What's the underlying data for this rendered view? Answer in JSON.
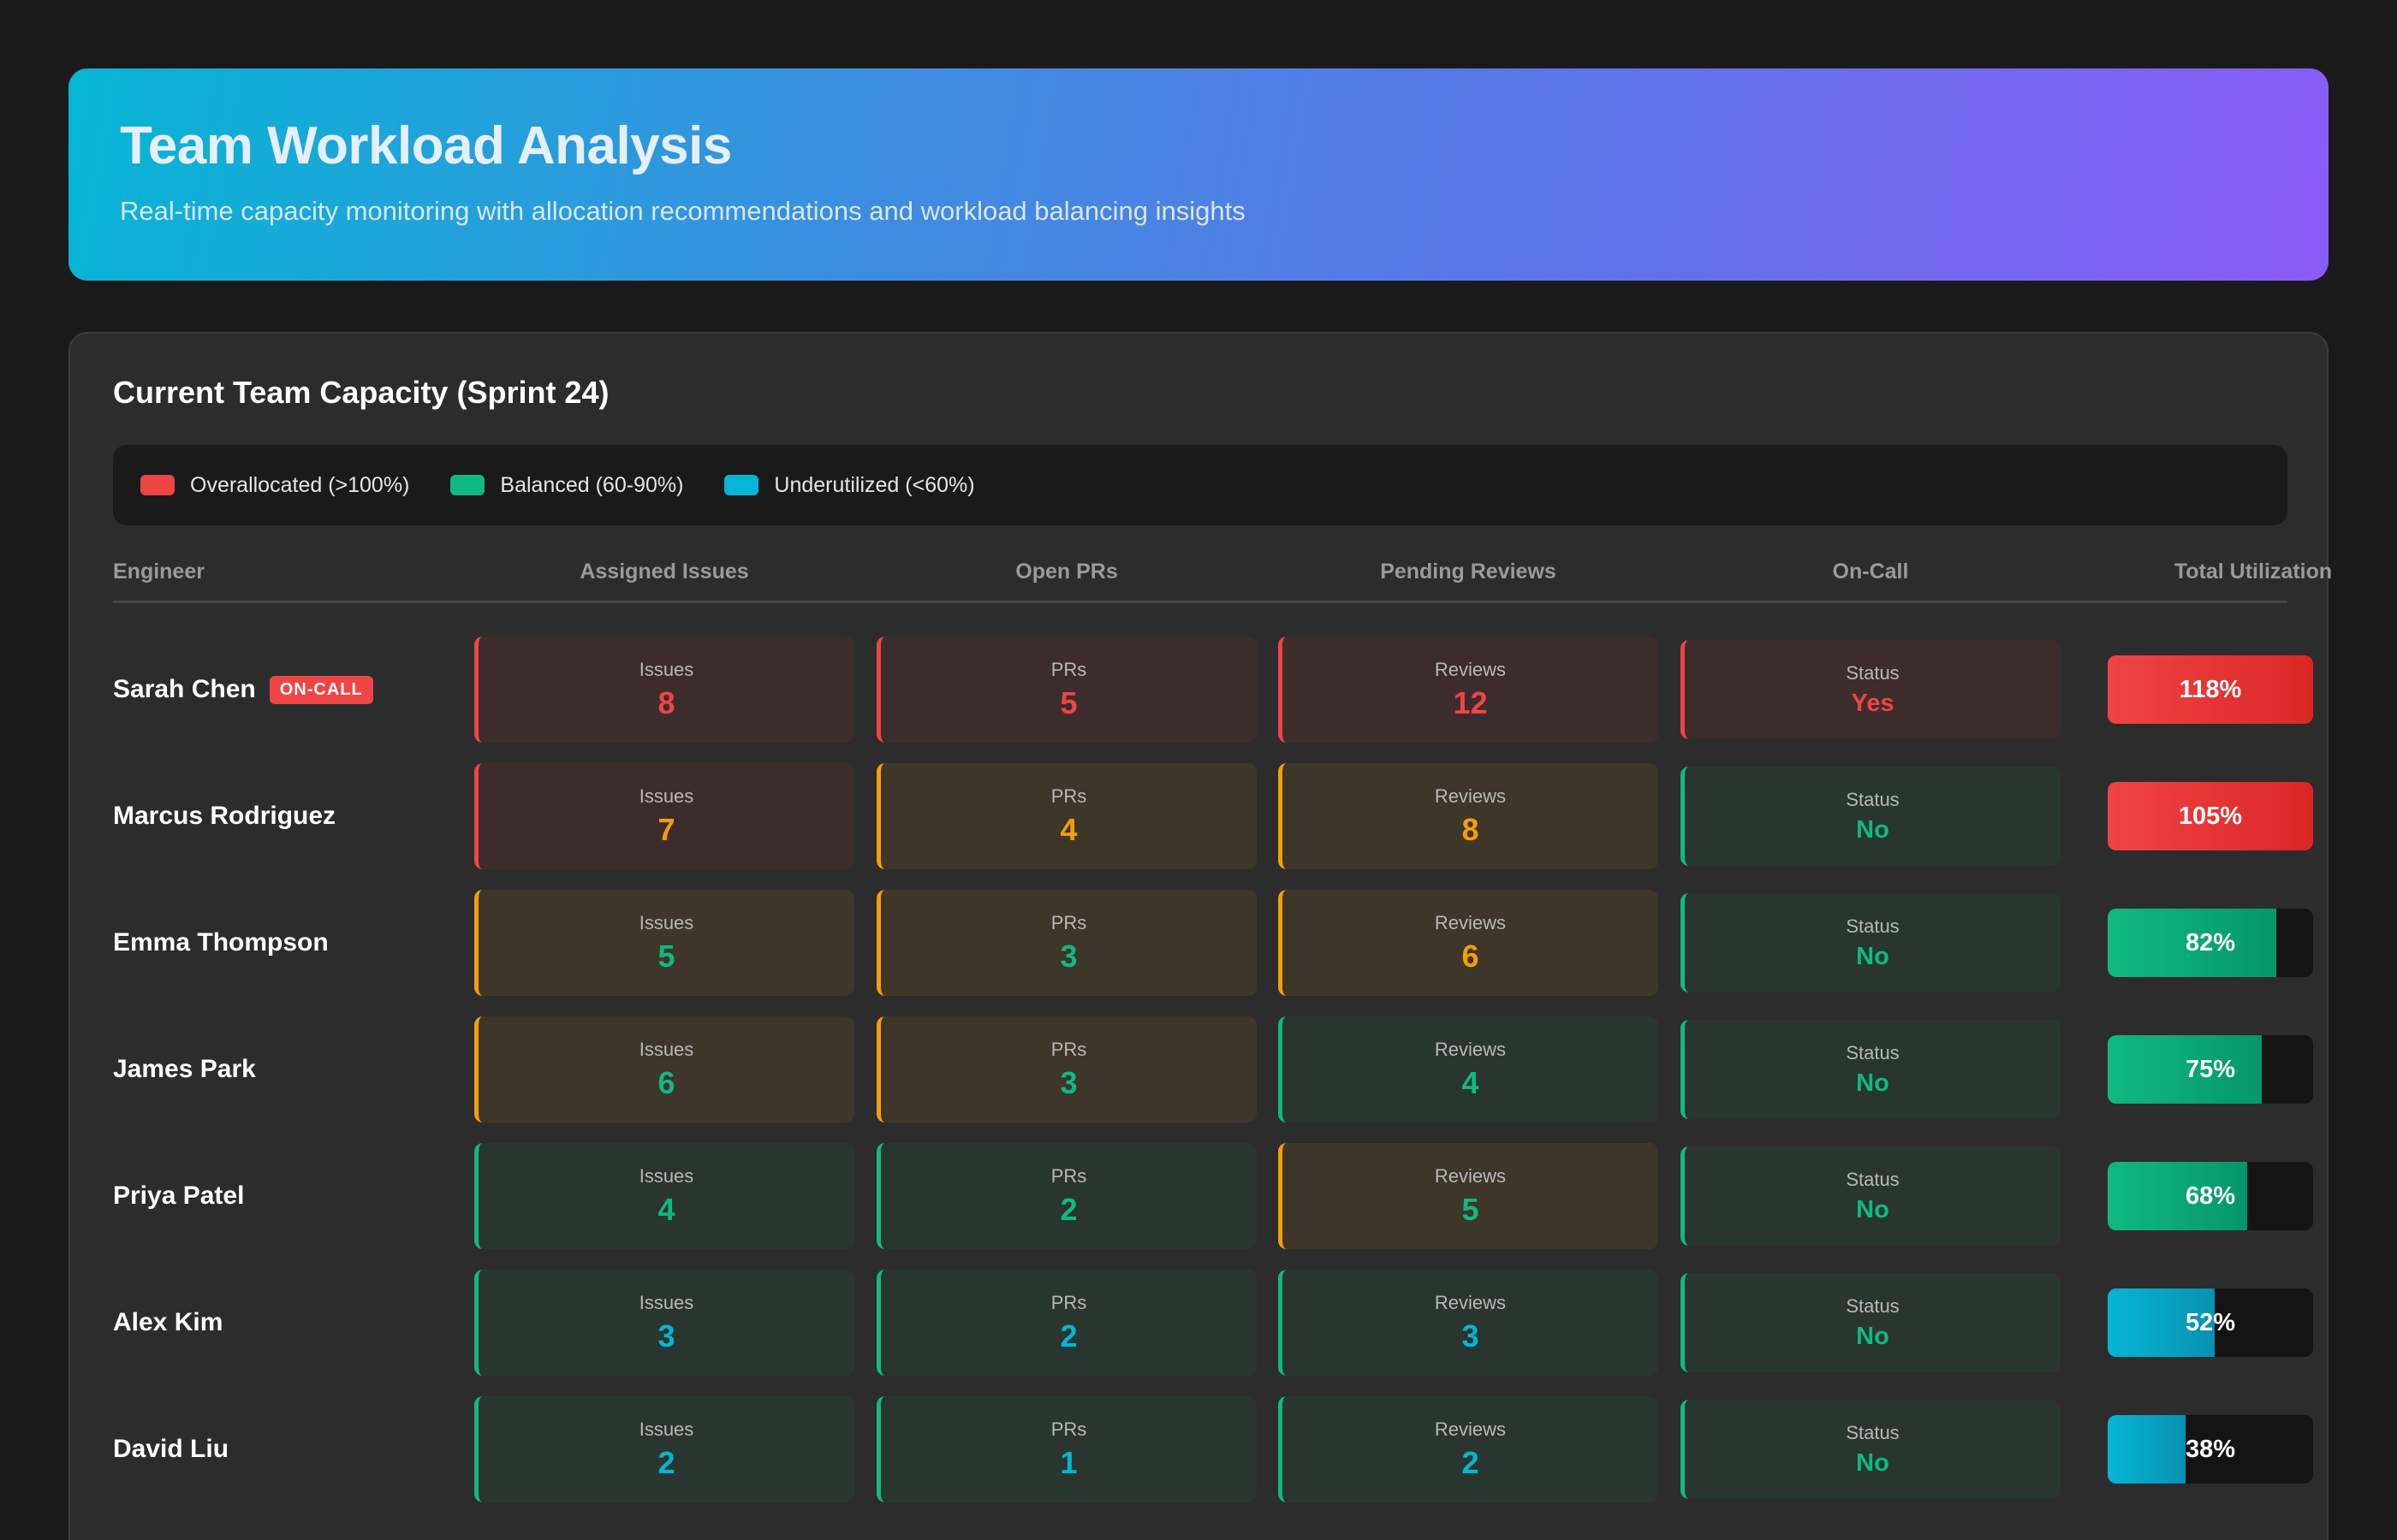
{
  "header": {
    "title": "Team Workload Analysis",
    "subtitle": "Real-time capacity monitoring with allocation recommendations and workload balancing insights"
  },
  "panel": {
    "title": "Current Team Capacity (Sprint 24)",
    "legend": [
      {
        "label": "Overallocated (>100%)",
        "color": "#ef4444"
      },
      {
        "label": "Balanced (60-90%)",
        "color": "#10b981"
      },
      {
        "label": "Underutilized (<60%)",
        "color": "#06b6d4"
      }
    ],
    "columns": {
      "engineer": "Engineer",
      "issues": "Assigned Issues",
      "prs": "Open PRs",
      "reviews": "Pending Reviews",
      "oncall": "On-Call",
      "utilization": "Total Utilization"
    },
    "cell_labels": {
      "issues": "Issues",
      "prs": "PRs",
      "reviews": "Reviews",
      "oncall": "Status"
    }
  },
  "rows": [
    {
      "name": "Sarah Chen",
      "badge": "ON-CALL",
      "issues": {
        "value": "8",
        "bg": "red",
        "fg": "red"
      },
      "prs": {
        "value": "5",
        "bg": "red",
        "fg": "red"
      },
      "reviews": {
        "value": "12",
        "bg": "red",
        "fg": "red"
      },
      "oncall": {
        "value": "Yes",
        "bg": "red",
        "fg": "red"
      },
      "utilization": {
        "label": "118%",
        "fraction": 1.0,
        "level": "red"
      }
    },
    {
      "name": "Marcus Rodriguez",
      "badge": "",
      "issues": {
        "value": "7",
        "bg": "red",
        "fg": "amber"
      },
      "prs": {
        "value": "4",
        "bg": "amber",
        "fg": "amber"
      },
      "reviews": {
        "value": "8",
        "bg": "amber",
        "fg": "amber"
      },
      "oncall": {
        "value": "No",
        "bg": "green",
        "fg": "green"
      },
      "utilization": {
        "label": "105%",
        "fraction": 1.0,
        "level": "red"
      }
    },
    {
      "name": "Emma Thompson",
      "badge": "",
      "issues": {
        "value": "5",
        "bg": "amber",
        "fg": "green"
      },
      "prs": {
        "value": "3",
        "bg": "amber",
        "fg": "green"
      },
      "reviews": {
        "value": "6",
        "bg": "amber",
        "fg": "amber"
      },
      "oncall": {
        "value": "No",
        "bg": "green",
        "fg": "green"
      },
      "utilization": {
        "label": "82%",
        "fraction": 0.82,
        "level": "green"
      }
    },
    {
      "name": "James Park",
      "badge": "",
      "issues": {
        "value": "6",
        "bg": "amber",
        "fg": "green"
      },
      "prs": {
        "value": "3",
        "bg": "amber",
        "fg": "green"
      },
      "reviews": {
        "value": "4",
        "bg": "green",
        "fg": "green"
      },
      "oncall": {
        "value": "No",
        "bg": "green",
        "fg": "green"
      },
      "utilization": {
        "label": "75%",
        "fraction": 0.75,
        "level": "green"
      }
    },
    {
      "name": "Priya Patel",
      "badge": "",
      "issues": {
        "value": "4",
        "bg": "green",
        "fg": "green"
      },
      "prs": {
        "value": "2",
        "bg": "green",
        "fg": "green"
      },
      "reviews": {
        "value": "5",
        "bg": "amber",
        "fg": "green"
      },
      "oncall": {
        "value": "No",
        "bg": "green",
        "fg": "green"
      },
      "utilization": {
        "label": "68%",
        "fraction": 0.68,
        "level": "green"
      }
    },
    {
      "name": "Alex Kim",
      "badge": "",
      "issues": {
        "value": "3",
        "bg": "green",
        "fg": "cyan"
      },
      "prs": {
        "value": "2",
        "bg": "green",
        "fg": "cyan"
      },
      "reviews": {
        "value": "3",
        "bg": "green",
        "fg": "cyan"
      },
      "oncall": {
        "value": "No",
        "bg": "green",
        "fg": "green"
      },
      "utilization": {
        "label": "52%",
        "fraction": 0.52,
        "level": "cyan"
      }
    },
    {
      "name": "David Liu",
      "badge": "",
      "issues": {
        "value": "2",
        "bg": "green",
        "fg": "cyan"
      },
      "prs": {
        "value": "1",
        "bg": "green",
        "fg": "cyan"
      },
      "reviews": {
        "value": "2",
        "bg": "green",
        "fg": "cyan"
      },
      "oncall": {
        "value": "No",
        "bg": "green",
        "fg": "green"
      },
      "utilization": {
        "label": "38%",
        "fraction": 0.38,
        "level": "cyan"
      }
    }
  ]
}
